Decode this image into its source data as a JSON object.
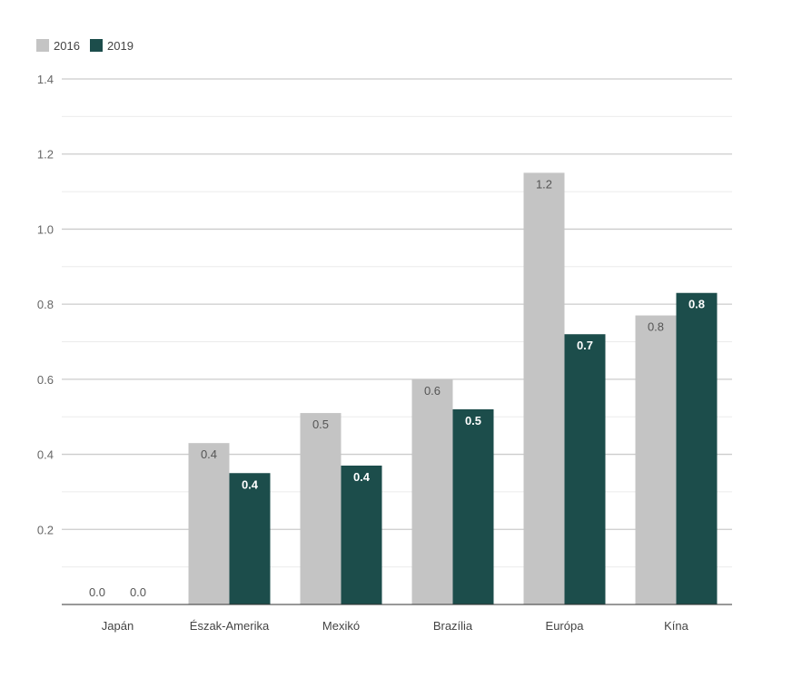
{
  "chart_data": {
    "type": "bar",
    "categories": [
      "Japán",
      "Észak-Amerika",
      "Mexikó",
      "Brazília",
      "Európa",
      "Kína"
    ],
    "series": [
      {
        "name": "2016",
        "color": "#c4c4c4",
        "values": [
          0.0,
          0.43,
          0.51,
          0.6,
          1.15,
          0.77
        ],
        "labels": [
          "0.0",
          "0.4",
          "0.5",
          "0.6",
          "1.2",
          "0.8"
        ]
      },
      {
        "name": "2019",
        "color": "#1c4d4b",
        "values": [
          0.0,
          0.35,
          0.37,
          0.52,
          0.72,
          0.83
        ],
        "labels": [
          "0.0",
          "0.4",
          "0.4",
          "0.5",
          "0.7",
          "0.8"
        ]
      }
    ],
    "y_ticks": [
      "0.2",
      "0.4",
      "0.6",
      "0.8",
      "1.0",
      "1.2",
      "1.4"
    ],
    "ylim": [
      0,
      1.4
    ],
    "grid": true,
    "legend_position": "top-left"
  }
}
